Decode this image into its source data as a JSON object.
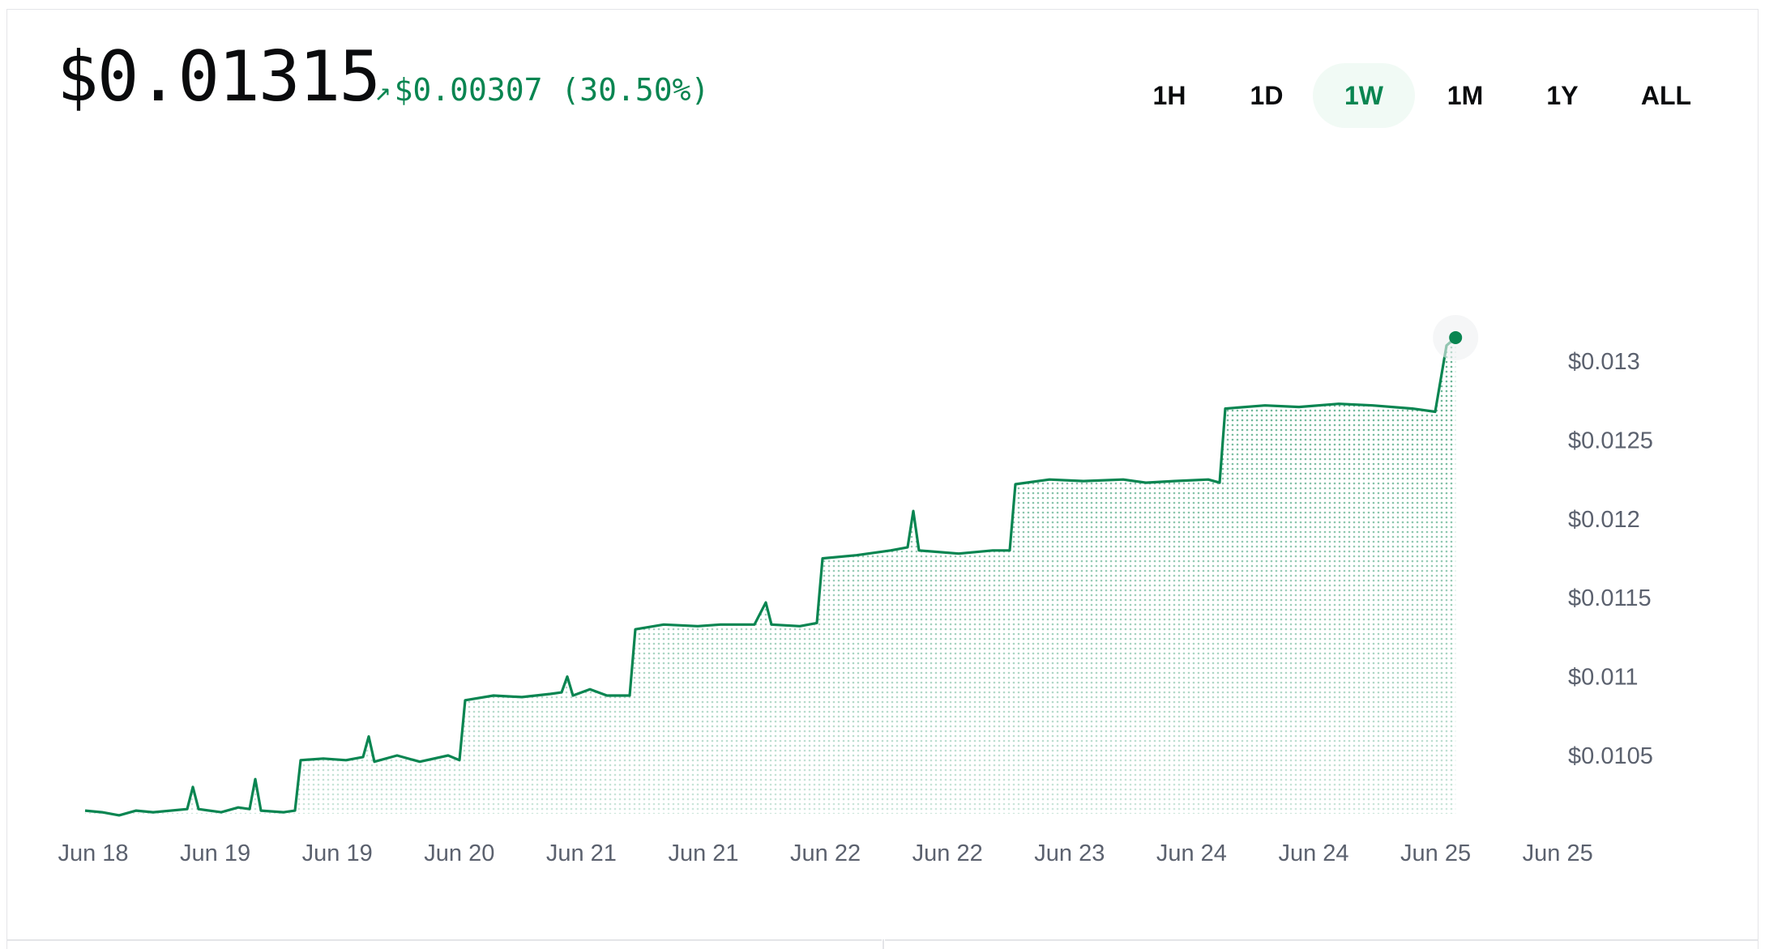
{
  "price": "$0.01315",
  "change": {
    "arrow": "↗",
    "amount": "$0.00307",
    "percent": "(30.50%)"
  },
  "range_tabs": [
    {
      "label": "1H",
      "active": false
    },
    {
      "label": "1D",
      "active": false
    },
    {
      "label": "1W",
      "active": true
    },
    {
      "label": "1M",
      "active": false
    },
    {
      "label": "1Y",
      "active": false
    },
    {
      "label": "ALL",
      "active": false
    }
  ],
  "colors": {
    "accent": "#098551",
    "active_tab_bg": "#f1faf5",
    "text": "#0a0b0d",
    "muted": "#5b616e"
  },
  "chart_data": {
    "type": "area",
    "y_ticks": [
      {
        "value": 0.013,
        "label": "$0.013"
      },
      {
        "value": 0.0125,
        "label": "$0.0125"
      },
      {
        "value": 0.012,
        "label": "$0.012"
      },
      {
        "value": 0.0115,
        "label": "$0.0115"
      },
      {
        "value": 0.011,
        "label": "$0.011"
      },
      {
        "value": 0.0105,
        "label": "$0.0105"
      }
    ],
    "x_ticks": [
      "Jun 18",
      "Jun 19",
      "Jun 19",
      "Jun 20",
      "Jun 21",
      "Jun 21",
      "Jun 22",
      "Jun 22",
      "Jun 23",
      "Jun 24",
      "Jun 24",
      "Jun 25",
      "Jun 25"
    ],
    "ylim": [
      0.01013,
      0.01335
    ],
    "x_span": 13,
    "x_offset": 0,
    "grid": false,
    "legend": "none",
    "series": [
      {
        "values": [
          [
            0.0,
            0.01015
          ],
          [
            0.15,
            0.01014
          ],
          [
            0.3,
            0.01012
          ],
          [
            0.45,
            0.01015
          ],
          [
            0.6,
            0.01014
          ],
          [
            0.9,
            0.01016
          ],
          [
            0.95,
            0.0103
          ],
          [
            1.0,
            0.01016
          ],
          [
            1.2,
            0.01014
          ],
          [
            1.35,
            0.01017
          ],
          [
            1.45,
            0.01016
          ],
          [
            1.5,
            0.01035
          ],
          [
            1.55,
            0.01015
          ],
          [
            1.75,
            0.01014
          ],
          [
            1.85,
            0.01015
          ],
          [
            1.9,
            0.01047
          ],
          [
            2.1,
            0.01048
          ],
          [
            2.3,
            0.01047
          ],
          [
            2.45,
            0.01049
          ],
          [
            2.5,
            0.01062
          ],
          [
            2.55,
            0.01046
          ],
          [
            2.75,
            0.0105
          ],
          [
            2.95,
            0.01046
          ],
          [
            3.2,
            0.0105
          ],
          [
            3.3,
            0.01047
          ],
          [
            3.35,
            0.01085
          ],
          [
            3.6,
            0.01088
          ],
          [
            3.85,
            0.01087
          ],
          [
            4.1,
            0.01089
          ],
          [
            4.2,
            0.0109
          ],
          [
            4.25,
            0.011
          ],
          [
            4.3,
            0.01088
          ],
          [
            4.45,
            0.01092
          ],
          [
            4.6,
            0.01088
          ],
          [
            4.8,
            0.01088
          ],
          [
            4.85,
            0.0113
          ],
          [
            5.1,
            0.01133
          ],
          [
            5.4,
            0.01132
          ],
          [
            5.6,
            0.01133
          ],
          [
            5.9,
            0.01133
          ],
          [
            6.0,
            0.01147
          ],
          [
            6.05,
            0.01133
          ],
          [
            6.3,
            0.01132
          ],
          [
            6.45,
            0.01134
          ],
          [
            6.5,
            0.01175
          ],
          [
            6.8,
            0.01177
          ],
          [
            7.1,
            0.0118
          ],
          [
            7.25,
            0.01182
          ],
          [
            7.3,
            0.01205
          ],
          [
            7.35,
            0.0118
          ],
          [
            7.7,
            0.01178
          ],
          [
            8.0,
            0.0118
          ],
          [
            8.15,
            0.0118
          ],
          [
            8.2,
            0.01222
          ],
          [
            8.5,
            0.01225
          ],
          [
            8.8,
            0.01224
          ],
          [
            9.15,
            0.01225
          ],
          [
            9.35,
            0.01223
          ],
          [
            9.6,
            0.01224
          ],
          [
            9.9,
            0.01225
          ],
          [
            10.0,
            0.01223
          ],
          [
            10.05,
            0.0127
          ],
          [
            10.4,
            0.01272
          ],
          [
            10.7,
            0.01271
          ],
          [
            11.05,
            0.01273
          ],
          [
            11.35,
            0.01272
          ],
          [
            11.7,
            0.0127
          ],
          [
            11.9,
            0.01268
          ],
          [
            12.0,
            0.0131
          ],
          [
            12.08,
            0.01315
          ]
        ]
      }
    ]
  }
}
